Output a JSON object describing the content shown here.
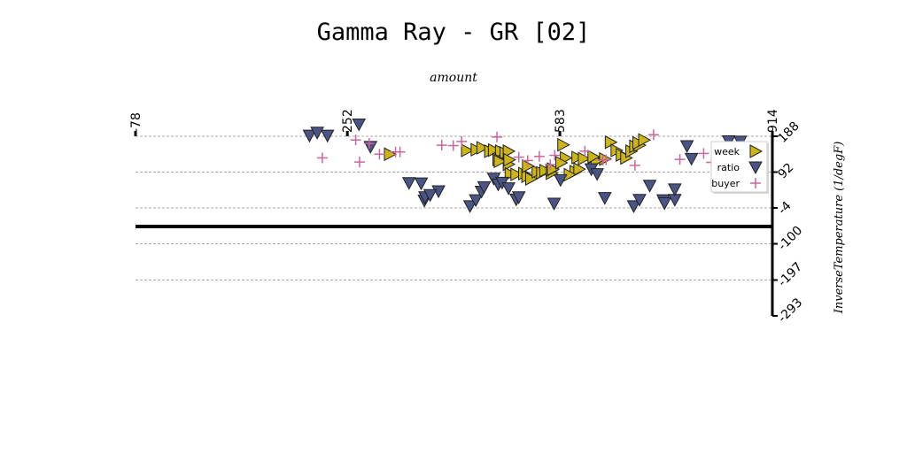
{
  "chart_data": {
    "type": "scatter",
    "title": "Gamma Ray - GR [02]",
    "xlabel": "amount",
    "ylabel": "InverseTemperature (1/degF)",
    "xlim": [
      -78,
      914
    ],
    "ylim": [
      -293,
      188
    ],
    "x_ticks": [
      "-78",
      "252",
      "583",
      "914"
    ],
    "y_ticks": [
      "188",
      "92",
      "-4",
      "-100",
      "-197",
      "-293"
    ],
    "x_tick_values": [
      -78,
      252,
      583,
      914
    ],
    "y_tick_values": [
      188,
      92,
      -4,
      -100,
      -197,
      -293
    ],
    "x_axis_position": "top",
    "y_axis_position": "right",
    "grid": true,
    "legend_position": "top-right",
    "colors": {
      "week": "#ccb41c",
      "ratio": "#4a5585",
      "buyer": "#c8679b"
    },
    "series": [
      {
        "name": "week",
        "marker": "triangle-right",
        "points": [
          [
            318,
            140
          ],
          [
            438,
            150
          ],
          [
            453,
            152
          ],
          [
            462,
            157
          ],
          [
            474,
            148
          ],
          [
            480,
            151
          ],
          [
            491,
            148
          ],
          [
            498,
            143
          ],
          [
            503,
            148
          ],
          [
            487,
            126
          ],
          [
            503,
            113
          ],
          [
            506,
            87
          ],
          [
            515,
            86
          ],
          [
            527,
            88
          ],
          [
            532,
            81
          ],
          [
            538,
            74
          ],
          [
            548,
            93
          ],
          [
            555,
            90
          ],
          [
            570,
            89
          ],
          [
            489,
            121
          ],
          [
            588,
            165
          ],
          [
            592,
            130
          ],
          [
            610,
            131
          ],
          [
            620,
            128
          ],
          [
            636,
            132
          ],
          [
            653,
            127
          ],
          [
            662,
            172
          ],
          [
            671,
            150
          ],
          [
            679,
            138
          ],
          [
            686,
            130
          ],
          [
            694,
            148
          ],
          [
            700,
            161
          ],
          [
            707,
            164
          ],
          [
            705,
            170
          ],
          [
            714,
            178
          ],
          [
            607,
            93
          ],
          [
            560,
            96
          ],
          [
            570,
            97
          ],
          [
            572,
            100
          ],
          [
            585,
            117
          ],
          [
            613,
            100
          ],
          [
            504,
            125
          ],
          [
            640,
            122
          ],
          [
            635,
            133
          ],
          [
            533,
            108
          ],
          [
            598,
            85
          ]
        ]
      },
      {
        "name": "ratio",
        "marker": "triangle-down",
        "points": [
          [
            193,
            190
          ],
          [
            221,
            190
          ],
          [
            205,
            198
          ],
          [
            270,
            220
          ],
          [
            288,
            160
          ],
          [
            348,
            63
          ],
          [
            372,
            16
          ],
          [
            394,
            41
          ],
          [
            367,
            62
          ],
          [
            373,
            25
          ],
          [
            381,
            31
          ],
          [
            443,
            1
          ],
          [
            452,
            17
          ],
          [
            461,
            40
          ],
          [
            465,
            52
          ],
          [
            480,
            75
          ],
          [
            487,
            59
          ],
          [
            493,
            64
          ],
          [
            503,
            49
          ],
          [
            515,
            19
          ],
          [
            519,
            25
          ],
          [
            574,
            8
          ],
          [
            584,
            71
          ],
          [
            632,
            100
          ],
          [
            641,
            87
          ],
          [
            653,
            23
          ],
          [
            698,
            1
          ],
          [
            707,
            18
          ],
          [
            723,
            56
          ],
          [
            744,
            17
          ],
          [
            746,
            9
          ],
          [
            762,
            18
          ],
          [
            762,
            46
          ],
          [
            781,
            162
          ],
          [
            788,
            128
          ],
          [
            831,
            151
          ],
          [
            846,
            175
          ],
          [
            864,
            174
          ]
        ]
      },
      {
        "name": "buyer",
        "marker": "plus",
        "points": [
          [
            213,
            130
          ],
          [
            265,
            178
          ],
          [
            271,
            119
          ],
          [
            302,
            140
          ],
          [
            286,
            169
          ],
          [
            327,
            146
          ],
          [
            334,
            146
          ],
          [
            399,
            164
          ],
          [
            417,
            163
          ],
          [
            430,
            174
          ],
          [
            485,
            186
          ],
          [
            519,
            132
          ],
          [
            533,
            123
          ],
          [
            551,
            134
          ],
          [
            568,
            112
          ],
          [
            575,
            137
          ],
          [
            622,
            148
          ],
          [
            650,
            124
          ],
          [
            655,
            125
          ],
          [
            700,
            110
          ],
          [
            729,
            192
          ],
          [
            770,
            126
          ],
          [
            819,
            118
          ],
          [
            807,
            142
          ],
          [
            861,
            150
          ],
          [
            870,
            163
          ],
          [
            848,
            155
          ],
          [
            874,
            110
          ]
        ]
      }
    ]
  }
}
